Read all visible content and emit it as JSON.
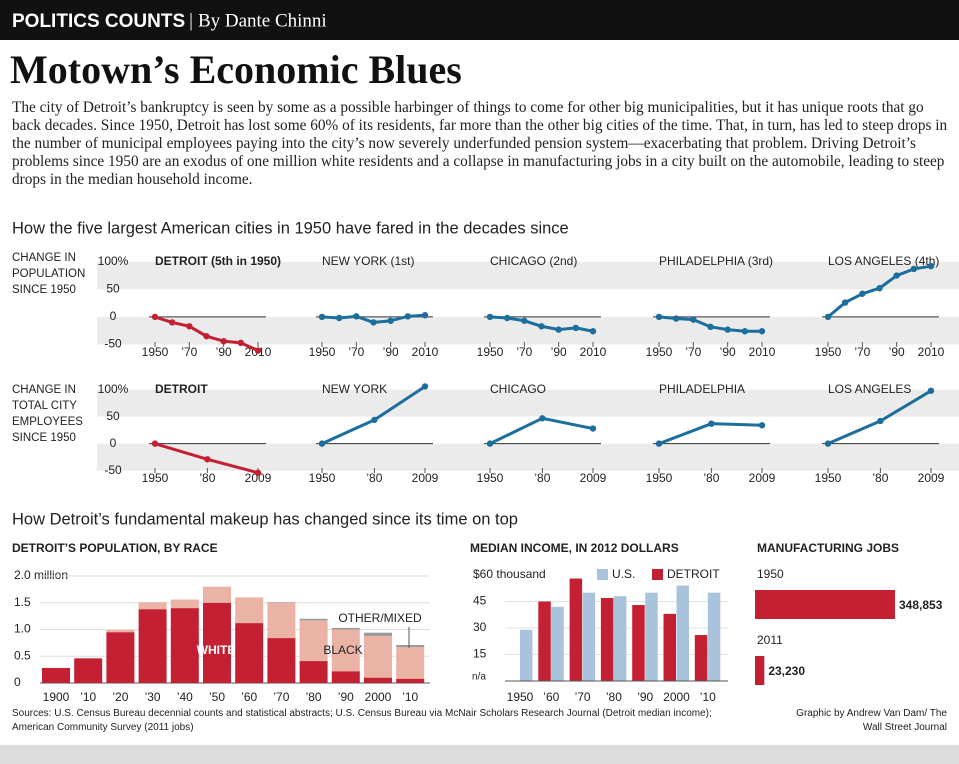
{
  "header": {
    "kicker": "POLITICS COUNTS",
    "byline": "By Dante Chinni"
  },
  "title": "Motown’s Economic Blues",
  "intro": "The city of Detroit’s bankruptcy is seen by some as a possible harbinger of things to come for other big municipalities, but it has unique roots that go back decades. Since 1950, Detroit has lost some 60% of its residents, far more than the other big cities of the time. That, in turn, has led to steep drops in the number of municipal employees paying into the city’s now severely underfunded pension system—exacerbating that problem. Driving Detroit’s problems since 1950 are an exodus of one million white residents and a collapse in manufacturing jobs in a city built on the automobile, leading to steep drops in the median household income.",
  "sections": [
    "How the five largest American cities in 1950 have fared in the decades since",
    "How Detroit’s fundamental makeup has changed since its time on top"
  ],
  "chart_data": [
    {
      "type": "small-multiples",
      "ylabel": "CHANGE IN POPULATION SINCE 1950",
      "ylim": [
        -60,
        105
      ],
      "yticks": [
        {
          "value": 100,
          "label": "100%"
        },
        50,
        0,
        -50
      ],
      "xlim": [
        1950,
        2010
      ],
      "x": [
        1950,
        1960,
        1970,
        1980,
        1990,
        2000,
        2010
      ],
      "xticks": [
        1950,
        {
          "value": 1970,
          "label": "’70"
        },
        {
          "value": 1990,
          "label": "’90"
        },
        2010
      ],
      "panels": [
        {
          "title": "DETROIT (5th in 1950)",
          "color": "#c42033",
          "values": [
            0,
            -10,
            -17,
            -35,
            -44,
            -47,
            -61
          ]
        },
        {
          "title": "NEW YORK (1st)",
          "color": "#1c6e9c",
          "values": [
            0,
            -2,
            1,
            -10,
            -7,
            1,
            3
          ]
        },
        {
          "title": "CHICAGO (2nd)",
          "color": "#1c6e9c",
          "values": [
            0,
            -2,
            -7,
            -17,
            -23,
            -20,
            -26
          ]
        },
        {
          "title": "PHILADELPHIA (3rd)",
          "color": "#1c6e9c",
          "values": [
            0,
            -3,
            -5,
            -18,
            -23,
            -26,
            -26
          ]
        },
        {
          "title": "LOS ANGELES (4th)",
          "color": "#1c6e9c",
          "values": [
            0,
            26,
            42,
            52,
            75,
            87,
            92
          ]
        }
      ]
    },
    {
      "type": "small-multiples",
      "ylabel": "CHANGE IN TOTAL CITY EMPLOYEES SINCE 1950",
      "ylim": [
        -60,
        105
      ],
      "yticks": [
        {
          "value": 100,
          "label": "100%"
        },
        50,
        0,
        -50
      ],
      "xlim": [
        1950,
        2009
      ],
      "x": [
        1950,
        1980,
        2009
      ],
      "xticks": [
        1950,
        {
          "value": 1980,
          "label": "’80"
        },
        2009
      ],
      "panels": [
        {
          "title": "DETROIT",
          "color": "#c42033",
          "values": [
            0,
            -29,
            -54
          ]
        },
        {
          "title": "NEW YORK",
          "color": "#1c6e9c",
          "values": [
            0,
            44,
            106
          ]
        },
        {
          "title": "CHICAGO",
          "color": "#1c6e9c",
          "values": [
            0,
            47,
            28
          ]
        },
        {
          "title": "PHILADELPHIA",
          "color": "#1c6e9c",
          "values": [
            0,
            37,
            34
          ]
        },
        {
          "title": "LOS ANGELES",
          "color": "#1c6e9c",
          "values": [
            0,
            42,
            98
          ]
        }
      ]
    },
    {
      "type": "stacked-bar",
      "title": "DETROIT’S POPULATION, BY RACE",
      "categories": [
        "1900",
        "’10",
        "’20",
        "’30",
        "’40",
        "’50",
        "’60",
        "’70",
        "’80",
        "’90",
        "2000",
        "’10"
      ],
      "ylim": [
        0,
        2
      ],
      "yticks": [
        0,
        0.5,
        {
          "value": 1,
          "label": "1.0"
        },
        1.5,
        {
          "value": 2,
          "label": "2.0 million"
        }
      ],
      "grid": true,
      "series": [
        {
          "name": "WHITE",
          "color": "#c42033",
          "values": [
            0.28,
            0.46,
            0.95,
            1.38,
            1.4,
            1.5,
            1.12,
            0.84,
            0.41,
            0.22,
            0.1,
            0.08
          ]
        },
        {
          "name": "BLACK",
          "color": "#eab3a6",
          "values": [
            0.004,
            0.006,
            0.04,
            0.13,
            0.16,
            0.3,
            0.48,
            0.66,
            0.76,
            0.78,
            0.78,
            0.59
          ]
        },
        {
          "name": "OTHER/MIXED",
          "color": "#9a9a9a",
          "values": [
            0,
            0,
            0,
            0,
            0,
            0,
            0,
            0.01,
            0.03,
            0.03,
            0.06,
            0.04
          ]
        }
      ]
    },
    {
      "type": "grouped-bar",
      "title": "MEDIAN INCOME, IN 2012 DOLLARS",
      "categories": [
        "1950",
        "’60",
        "’70",
        "’80",
        "’90",
        "2000",
        "’10"
      ],
      "ylim": [
        0,
        60
      ],
      "yticks": [
        15,
        30,
        45,
        {
          "value": 60,
          "label": "$60 thousand"
        }
      ],
      "grid": true,
      "series": [
        {
          "name": "DETROIT",
          "color": "#c42033",
          "values": [
            null,
            45,
            58,
            47,
            43,
            38,
            26
          ],
          "value_labels": [
            "n/a",
            null,
            null,
            null,
            null,
            null,
            null
          ]
        },
        {
          "name": "U.S.",
          "color": "#a9c3dd",
          "values": [
            29,
            42,
            50,
            48,
            50,
            54,
            50
          ]
        }
      ]
    },
    {
      "type": "hbar",
      "title": "MANUFACTURING JOBS",
      "color": "#c42033",
      "categories": [
        "1950",
        "2011"
      ],
      "values": [
        348853,
        23230
      ],
      "value_labels": [
        "348,853",
        "23,230"
      ]
    }
  ],
  "sources": "Sources: U.S. Census Bureau decennial counts and statistical abstracts; U.S. Census Bureau via McNair Scholars Research Journal (Detroit median income); American Community Survey (2011 jobs)",
  "credit": "Graphic by Andrew Van Dam/ The Wall Street Journal"
}
